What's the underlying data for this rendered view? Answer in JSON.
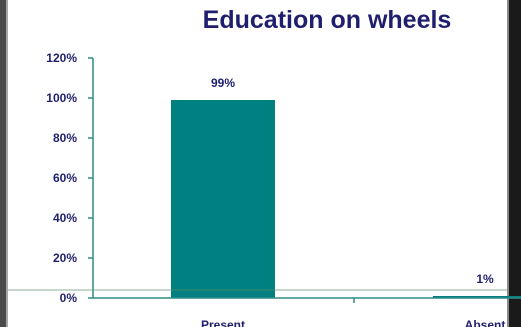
{
  "chart_data": {
    "type": "bar",
    "title": "Education on wheels",
    "categories": [
      "Present",
      "Absent"
    ],
    "values": [
      99,
      1
    ],
    "data_labels": [
      "99%",
      "1%"
    ],
    "y_ticks": [
      "0%",
      "20%",
      "40%",
      "60%",
      "80%",
      "100%",
      "120%"
    ],
    "y_tick_values": [
      0,
      20,
      40,
      60,
      80,
      100,
      120
    ],
    "ylim": [
      0,
      120
    ],
    "xlabel": "",
    "ylabel": "",
    "grid": false,
    "legend": "none",
    "bar_color": "#008080",
    "axis_color": "#2e8b87",
    "text_color": "#1f1f6e"
  }
}
